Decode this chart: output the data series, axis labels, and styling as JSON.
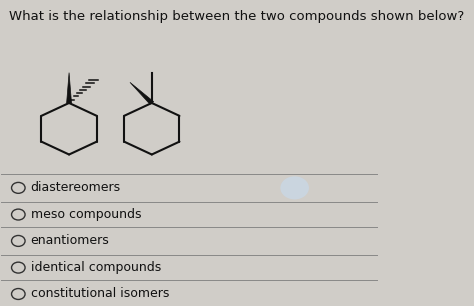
{
  "title": "What is the relationship between the two compounds shown below?",
  "title_fontsize": 9.5,
  "bg_color": "#d0cdc8",
  "options": [
    "diastereomers",
    "meso compounds",
    "enantiomers",
    "identical compounds",
    "constitutional isomers"
  ],
  "option_fontsize": 9,
  "line_color": "#888888",
  "text_color": "#111111",
  "highlight_color": "#c8d8e8",
  "mol_col": "#111111"
}
